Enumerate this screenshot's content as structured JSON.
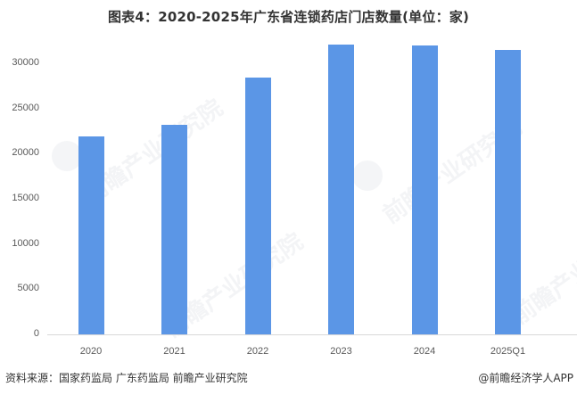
{
  "title": "图表4：2020-2025年广东省连锁药店门店数量(单位：家)",
  "footer": {
    "source": "资料来源：国家药监局 广东药监局 前瞻产业研究院",
    "credit": "@前瞻经济学人APP"
  },
  "watermark": "前瞻产业研究院",
  "colors": {
    "bar": "#5b96e6",
    "axis": "#d9d9d9",
    "text": "#595959"
  },
  "chart_data": {
    "type": "bar",
    "title": "图表4：2020-2025年广东省连锁药店门店数量(单位：家)",
    "xlabel": "",
    "ylabel": "",
    "categories": [
      "2020",
      "2021",
      "2022",
      "2023",
      "2024",
      "2025Q1"
    ],
    "values": [
      21900,
      23200,
      28400,
      32100,
      32000,
      31500
    ],
    "unit": "家",
    "ylim": [
      0,
      32500
    ],
    "yticks": [
      0,
      5000,
      10000,
      15000,
      20000,
      25000,
      30000
    ],
    "ytick_labels": [
      "0",
      "5000",
      "10000",
      "15000",
      "20000",
      "25000",
      "30000"
    ],
    "grid": false,
    "legend": null
  }
}
